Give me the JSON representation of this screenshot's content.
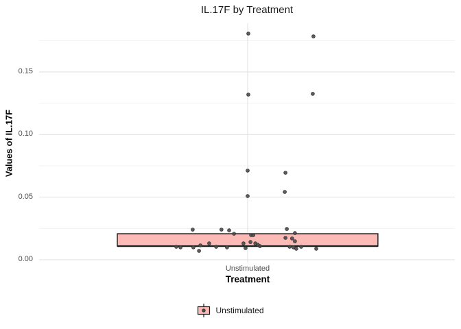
{
  "chart_data": {
    "type": "boxplot",
    "title": "IL.17F by Treatment",
    "xlabel": "Treatment",
    "ylabel": "Values of IL.17F",
    "categories": [
      "Unstimulated"
    ],
    "axes": {
      "y_major_ticks": [
        0.0,
        0.05,
        0.1,
        0.15
      ],
      "y_tick_labels": [
        "0.00",
        "0.05",
        "0.10",
        "0.15"
      ],
      "y_minor_ticks": [
        0.025,
        0.075,
        0.125,
        0.175
      ],
      "ylim": [
        -0.002,
        0.189
      ],
      "grid": true,
      "legend_position": "bottom"
    },
    "box": {
      "category": "Unstimulated",
      "lower": 0.0109,
      "median": 0.0109,
      "upper": 0.0208,
      "whiskers_visible": false,
      "width": 0.745
    },
    "points": [
      {
        "x_offset": 0.002,
        "value": 0.1806
      },
      {
        "x_offset": 0.188,
        "value": 0.1784
      },
      {
        "x_offset": 0.002,
        "value": 0.1319
      },
      {
        "x_offset": 0.186,
        "value": 0.1325
      },
      {
        "x_offset": 0.0,
        "value": 0.0712
      },
      {
        "x_offset": 0.108,
        "value": 0.0695
      },
      {
        "x_offset": 0.106,
        "value": 0.0542
      },
      {
        "x_offset": 0.0,
        "value": 0.0509
      },
      {
        "x_offset": -0.157,
        "value": 0.0241
      },
      {
        "x_offset": -0.075,
        "value": 0.0241
      },
      {
        "x_offset": -0.053,
        "value": 0.0235
      },
      {
        "x_offset": 0.112,
        "value": 0.0246
      },
      {
        "x_offset": 0.135,
        "value": 0.0213
      },
      {
        "x_offset": -0.039,
        "value": 0.0208
      },
      {
        "x_offset": 0.01,
        "value": 0.0197
      },
      {
        "x_offset": 0.016,
        "value": 0.0197
      },
      {
        "x_offset": 0.108,
        "value": 0.0175
      },
      {
        "x_offset": 0.127,
        "value": 0.017
      },
      {
        "x_offset": 0.135,
        "value": 0.0148
      },
      {
        "x_offset": 0.008,
        "value": 0.0142
      },
      {
        "x_offset": -0.11,
        "value": 0.0131
      },
      {
        "x_offset": -0.012,
        "value": 0.0131
      },
      {
        "x_offset": 0.022,
        "value": 0.0131
      },
      {
        "x_offset": 0.029,
        "value": 0.012
      },
      {
        "x_offset": -0.135,
        "value": 0.0115
      },
      {
        "x_offset": 0.035,
        "value": 0.0109
      },
      {
        "x_offset": -0.204,
        "value": 0.0104
      },
      {
        "x_offset": -0.09,
        "value": 0.0104
      },
      {
        "x_offset": 0.12,
        "value": 0.0104
      },
      {
        "x_offset": 0.153,
        "value": 0.0104
      },
      {
        "x_offset": -0.192,
        "value": 0.0099
      },
      {
        "x_offset": -0.155,
        "value": 0.0099
      },
      {
        "x_offset": -0.059,
        "value": 0.0099
      },
      {
        "x_offset": 0.131,
        "value": 0.0099
      },
      {
        "x_offset": -0.006,
        "value": 0.0093
      },
      {
        "x_offset": 0.139,
        "value": 0.0088
      },
      {
        "x_offset": 0.196,
        "value": 0.0088
      },
      {
        "x_offset": -0.139,
        "value": 0.0071
      }
    ],
    "legend": {
      "position": "bottom",
      "items": [
        {
          "label": "Unstimulated",
          "fill": "#fbbab6"
        }
      ]
    },
    "colors": {
      "box_fill": "#fbbab6",
      "box_border": "#1a1a1a",
      "point": "#4d4d4d",
      "grid_major": "#e2e2e2",
      "grid_minor": "#efefef",
      "axis_text": "#4d4d4d",
      "title_text": "#1a1a1a"
    }
  }
}
